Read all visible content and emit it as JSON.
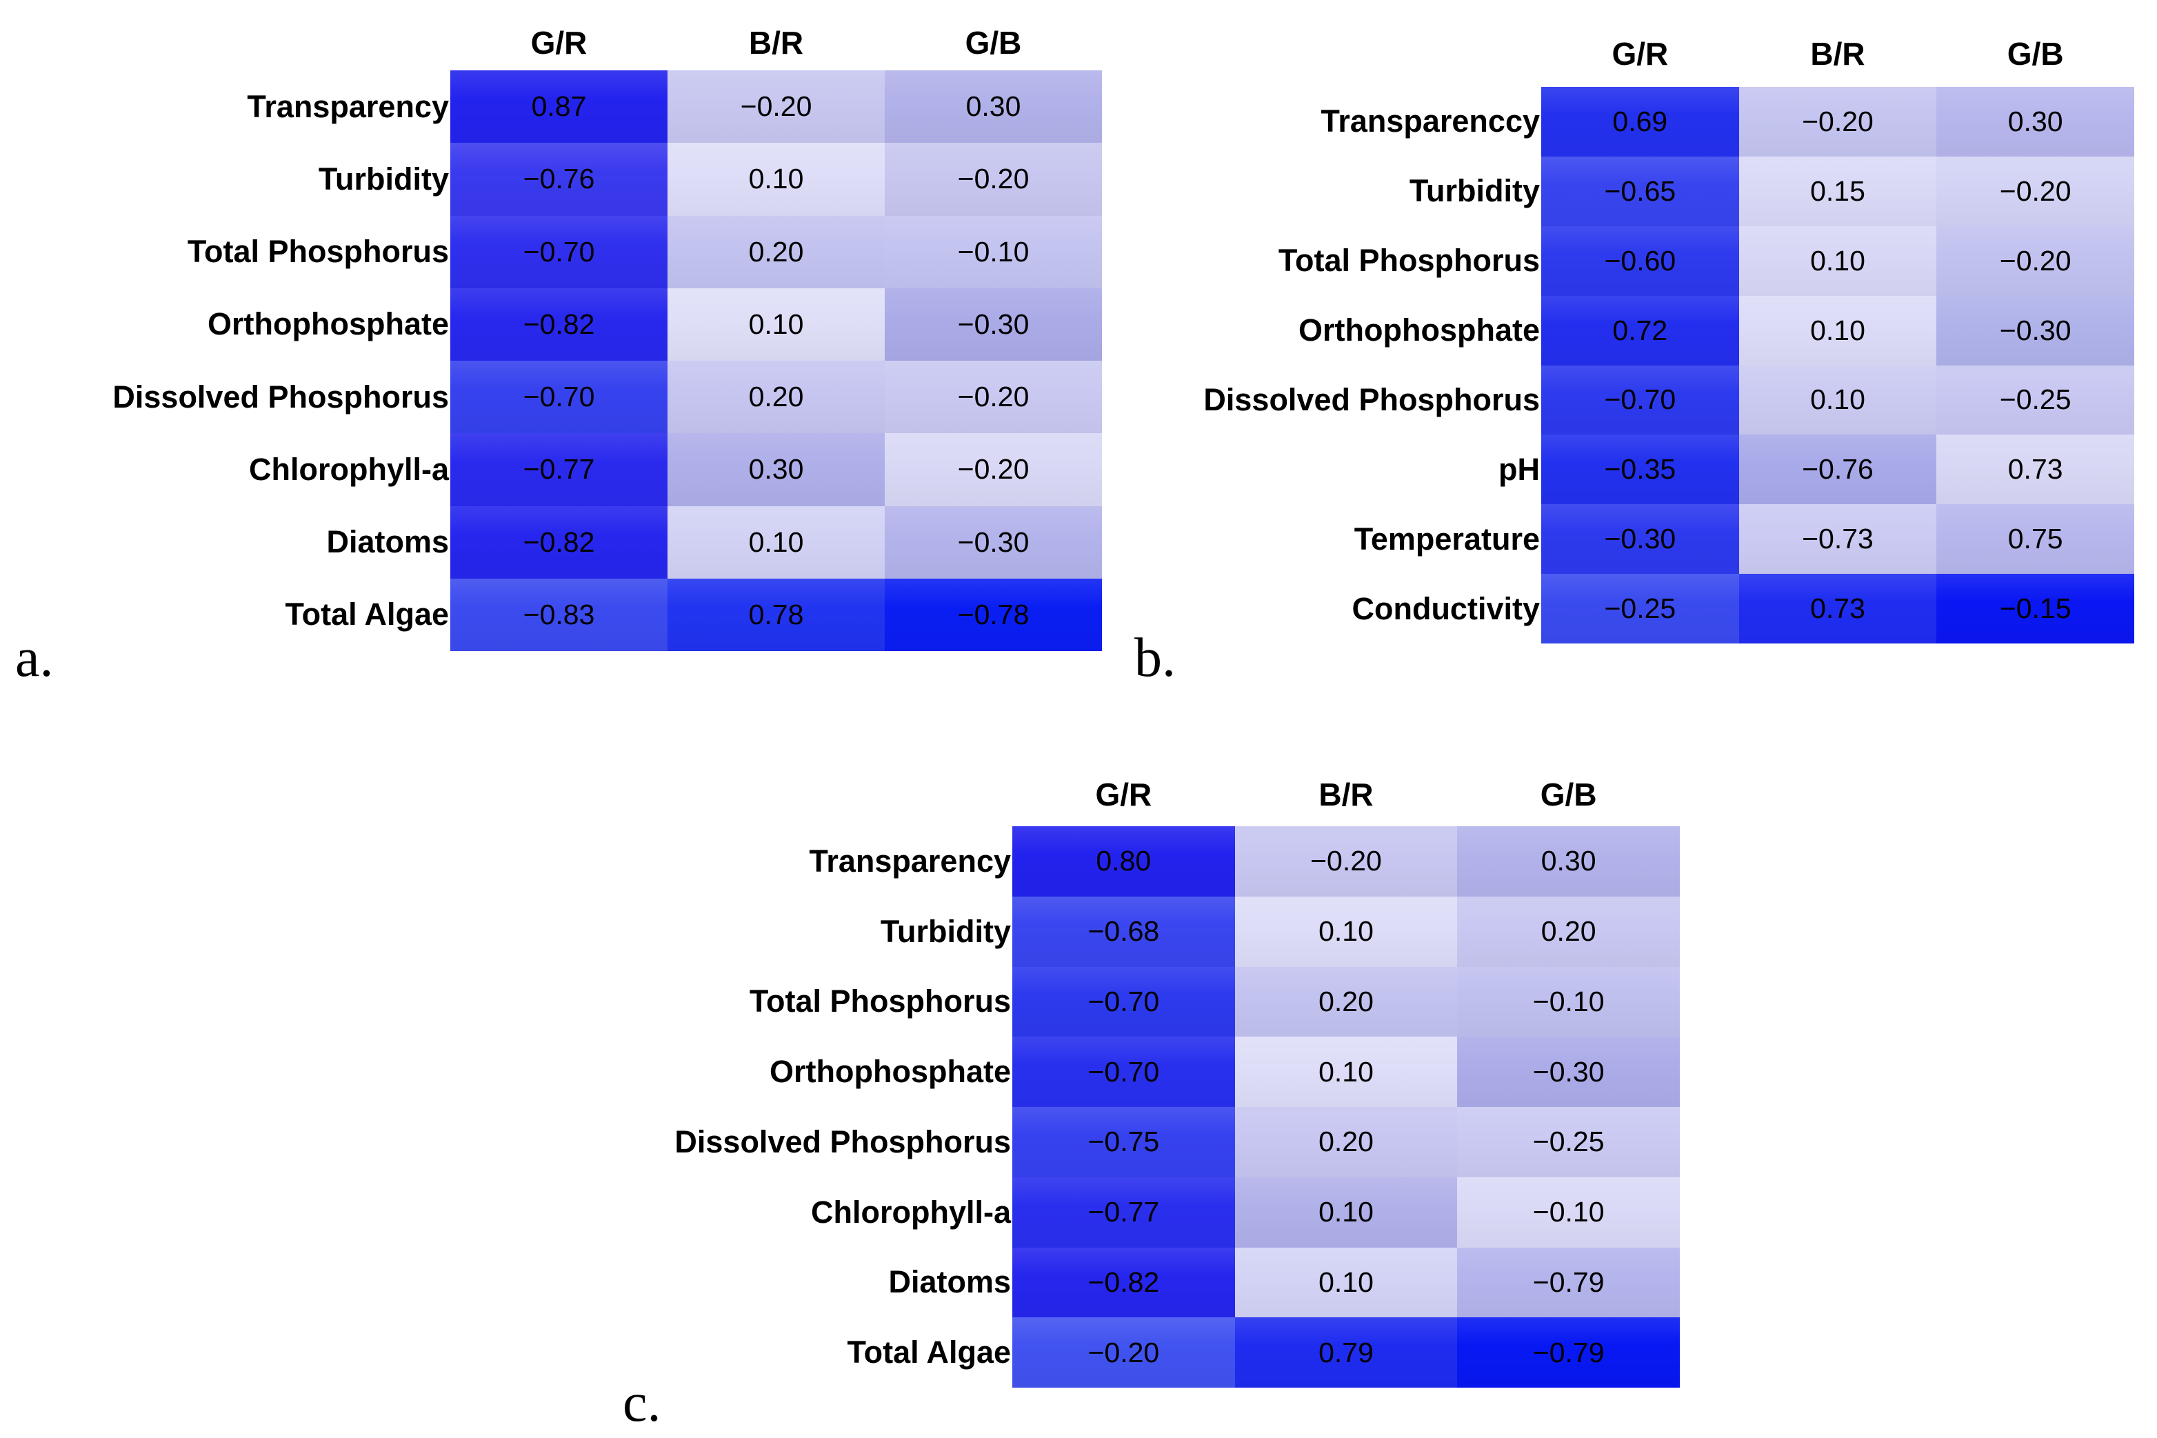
{
  "figure": {
    "background": "#ffffff",
    "text_color": "#000000",
    "color_scale": {
      "low_magnitude": "#E0E0F8",
      "high_magnitude": "#0718F3"
    }
  },
  "chart_data": [
    {
      "type": "heatmap",
      "panel_label": "a.",
      "columns": [
        "G/R",
        "B/R",
        "G/B"
      ],
      "rows": [
        "Transparency",
        "Turbidity",
        "Total Phosphorus",
        "Orthophosphate",
        "Dissolved Phosphorus",
        "Chlorophyll-a",
        "Diatoms",
        "Total Algae"
      ],
      "values": [
        [
          0.87,
          -0.2,
          0.3
        ],
        [
          -0.76,
          0.1,
          -0.2
        ],
        [
          -0.7,
          0.2,
          -0.1
        ],
        [
          -0.82,
          0.1,
          -0.3
        ],
        [
          -0.7,
          0.2,
          -0.2
        ],
        [
          -0.77,
          0.3,
          -0.2
        ],
        [
          -0.82,
          0.1,
          -0.3
        ],
        [
          -0.83,
          0.78,
          -0.78
        ]
      ],
      "value_labels": [
        [
          "0.87",
          "−0.20",
          "0.30"
        ],
        [
          "−0.76",
          "0.10",
          "−0.20"
        ],
        [
          "−0.70",
          "0.20",
          "−0.10"
        ],
        [
          "−0.82",
          "0.10",
          "−0.30"
        ],
        [
          "−0.70",
          "0.20",
          "−0.20"
        ],
        [
          "−0.77",
          "0.30",
          "−0.20"
        ],
        [
          "−0.82",
          "0.10",
          "−0.30"
        ],
        [
          "−0.83",
          "0.78",
          "−0.78"
        ]
      ],
      "cell_colors": [
        [
          "#2323EE",
          "#C7C7F0",
          "#B2B2EA"
        ],
        [
          "#3A3AEF",
          "#DEDEF8",
          "#C7C7F0"
        ],
        [
          "#2F2FEE",
          "#C3C3F0",
          "#C4C4F1"
        ],
        [
          "#2828EE",
          "#DFDFF8",
          "#ABABE8"
        ],
        [
          "#3642EE",
          "#C6C6F1",
          "#C9C9F2"
        ],
        [
          "#2A2AEE",
          "#AFAFEA",
          "#D9D9F6"
        ],
        [
          "#2626EE",
          "#D2D2F4",
          "#B4B4EC"
        ],
        [
          "#3B4BEF",
          "#2134F0",
          "#0A1EF3"
        ]
      ]
    },
    {
      "type": "heatmap",
      "panel_label": "b.",
      "columns": [
        "G/R",
        "B/R",
        "G/B"
      ],
      "rows": [
        "Transparenccy",
        "Turbidity",
        "Total Phosphorus",
        "Orthophosphate",
        "Dissolved Phosphorus",
        "pH",
        "Temperature",
        "Conductivity"
      ],
      "values": [
        [
          0.69,
          -0.2,
          0.3
        ],
        [
          -0.65,
          0.15,
          -0.2
        ],
        [
          -0.6,
          0.1,
          -0.2
        ],
        [
          0.72,
          0.1,
          -0.3
        ],
        [
          -0.7,
          0.1,
          -0.25
        ],
        [
          -0.35,
          -0.76,
          0.73
        ],
        [
          -0.3,
          -0.73,
          0.75
        ],
        [
          -0.25,
          0.73,
          -0.15
        ]
      ],
      "value_labels": [
        [
          "0.69",
          "−0.20",
          "0.30"
        ],
        [
          "−0.65",
          "0.15",
          "−0.20"
        ],
        [
          "−0.60",
          "0.10",
          "−0.20"
        ],
        [
          "0.72",
          "0.10",
          "−0.30"
        ],
        [
          "−0.70",
          "0.10",
          "−0.25"
        ],
        [
          "−0.35",
          "−0.76",
          "0.73"
        ],
        [
          "−0.30",
          "−0.73",
          "0.75"
        ],
        [
          "−0.25",
          "0.73",
          "−0.15"
        ]
      ],
      "cell_colors": [
        [
          "#2331EE",
          "#C5C5F1",
          "#B7B7ED"
        ],
        [
          "#3845EF",
          "#DADAF7",
          "#D3D3F5"
        ],
        [
          "#2D3AEE",
          "#D8D8F6",
          "#C2C2F0"
        ],
        [
          "#232FEE",
          "#DCDCF8",
          "#AFB3EA"
        ],
        [
          "#2D3AEE",
          "#CBCBF2",
          "#C7C7F2"
        ],
        [
          "#2231EE",
          "#A9AAE9",
          "#D8D8F5"
        ],
        [
          "#2D3AEE",
          "#CBCBF3",
          "#B7B7ED"
        ],
        [
          "#3A4BEF",
          "#1F2DF1",
          "#0A17F3"
        ]
      ]
    },
    {
      "type": "heatmap",
      "panel_label": "c.",
      "columns": [
        "G/R",
        "B/R",
        "G/B"
      ],
      "rows": [
        "Transparency",
        "Turbidity",
        "Total Phosphorus",
        "Orthophosphate",
        "Dissolved Phosphorus",
        "Chlorophyll-a",
        "Diatoms",
        "Total Algae"
      ],
      "values": [
        [
          0.8,
          -0.2,
          0.3
        ],
        [
          -0.68,
          0.1,
          0.2
        ],
        [
          -0.7,
          0.2,
          -0.1
        ],
        [
          -0.7,
          0.1,
          -0.3
        ],
        [
          -0.75,
          0.2,
          -0.25
        ],
        [
          -0.77,
          0.1,
          -0.1
        ],
        [
          -0.82,
          0.1,
          -0.79
        ],
        [
          -0.2,
          0.79,
          -0.79
        ]
      ],
      "value_labels": [
        [
          "0.80",
          "−0.20",
          "0.30"
        ],
        [
          "−0.68",
          "0.10",
          "0.20"
        ],
        [
          "−0.70",
          "0.20",
          "−0.10"
        ],
        [
          "−0.70",
          "0.10",
          "−0.30"
        ],
        [
          "−0.75",
          "0.20",
          "−0.25"
        ],
        [
          "−0.77",
          "0.10",
          "−0.10"
        ],
        [
          "−0.82",
          "0.10",
          "−0.79"
        ],
        [
          "−0.20",
          "0.79",
          "−0.79"
        ]
      ],
      "cell_colors": [
        [
          "#2322EE",
          "#C7C7F1",
          "#B3B3EB"
        ],
        [
          "#3A46EF",
          "#DDDDF8",
          "#C8C8F2"
        ],
        [
          "#2D3AEE",
          "#C3C3F0",
          "#C0C0EF"
        ],
        [
          "#2830EE",
          "#DEDEF8",
          "#ACACE9"
        ],
        [
          "#3642EF",
          "#C7C7F2",
          "#CACAF3"
        ],
        [
          "#2A2FEE",
          "#B1B1EA",
          "#DADAF7"
        ],
        [
          "#2626EE",
          "#D3D3F5",
          "#B5B5ED"
        ],
        [
          "#4153F0",
          "#1E2CF0",
          "#0718F3"
        ]
      ]
    }
  ]
}
